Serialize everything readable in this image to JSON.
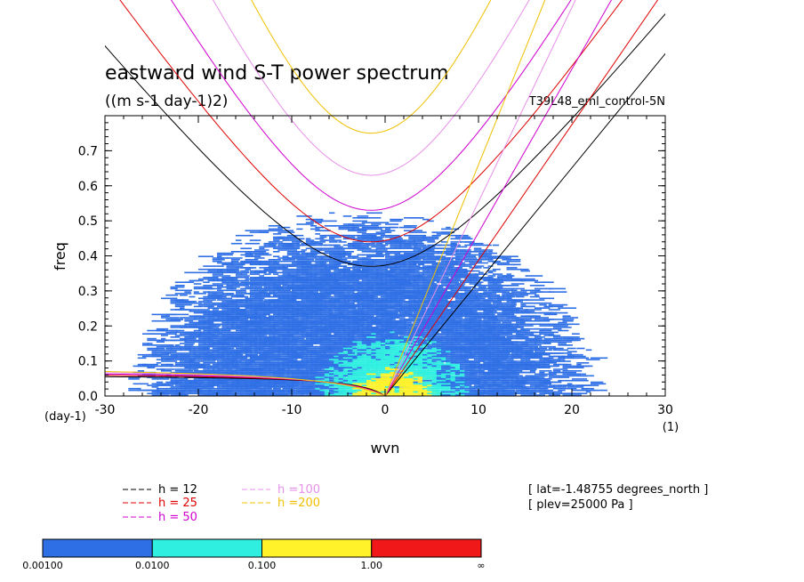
{
  "chart_data": {
    "type": "heatmap",
    "title": "eastward wind S-T power spectrum",
    "subtitle": "((m s-1 day-1)2)",
    "run_label": "T39L48_eml_control-5N",
    "xlabel": "wvn",
    "ylabel": "freq",
    "x_unit": "(1)",
    "y_unit": "(day-1)",
    "xlim": [
      -30,
      30
    ],
    "ylim": [
      0,
      0.8
    ],
    "x_ticks": [
      -30,
      -20,
      -10,
      0,
      10,
      20,
      30
    ],
    "y_ticks": [
      0.0,
      0.1,
      0.2,
      0.3,
      0.4,
      0.5,
      0.6,
      0.7
    ],
    "y_tick_labels": [
      "0.0",
      "0.1",
      "0.2",
      "0.3",
      "0.4",
      "0.5",
      "0.6",
      "0.7"
    ],
    "color_levels": {
      "labels": [
        "0.00100",
        "0.0100",
        "0.100",
        "1.00",
        "∞"
      ],
      "colors": [
        "#2e6fe6",
        "#2ff0e0",
        "#fff22a",
        "#f01818"
      ]
    },
    "power_regions": [
      {
        "level": 0,
        "kmin": -28,
        "kmax": 22,
        "fmax": 0.52
      },
      {
        "level": 1,
        "kmin": -8,
        "kmax": 9,
        "fmax": 0.18
      },
      {
        "level": 2,
        "kmin": -4,
        "kmax": 5,
        "fmax": 0.08
      }
    ],
    "dispersion_curves": {
      "legend": [
        {
          "label": "h = 12",
          "color": "#000000"
        },
        {
          "label": "h = 25",
          "color": "#e00000"
        },
        {
          "label": "h = 50",
          "color": "#d000d0"
        },
        {
          "label": "h =100",
          "color": "#e890e8"
        },
        {
          "label": "h =200",
          "color": "#f0c000"
        }
      ],
      "inertia_gravity_min_freq": [
        {
          "h": 12,
          "freq": 0.37
        },
        {
          "h": 25,
          "freq": 0.44
        },
        {
          "h": 50,
          "freq": 0.53
        },
        {
          "h": 100,
          "freq": 0.63
        },
        {
          "h": 200,
          "freq": 0.75
        }
      ]
    },
    "info": [
      "[ lat=-1.48755 degrees_north ]",
      "[ plev=25000 Pa ]"
    ]
  }
}
